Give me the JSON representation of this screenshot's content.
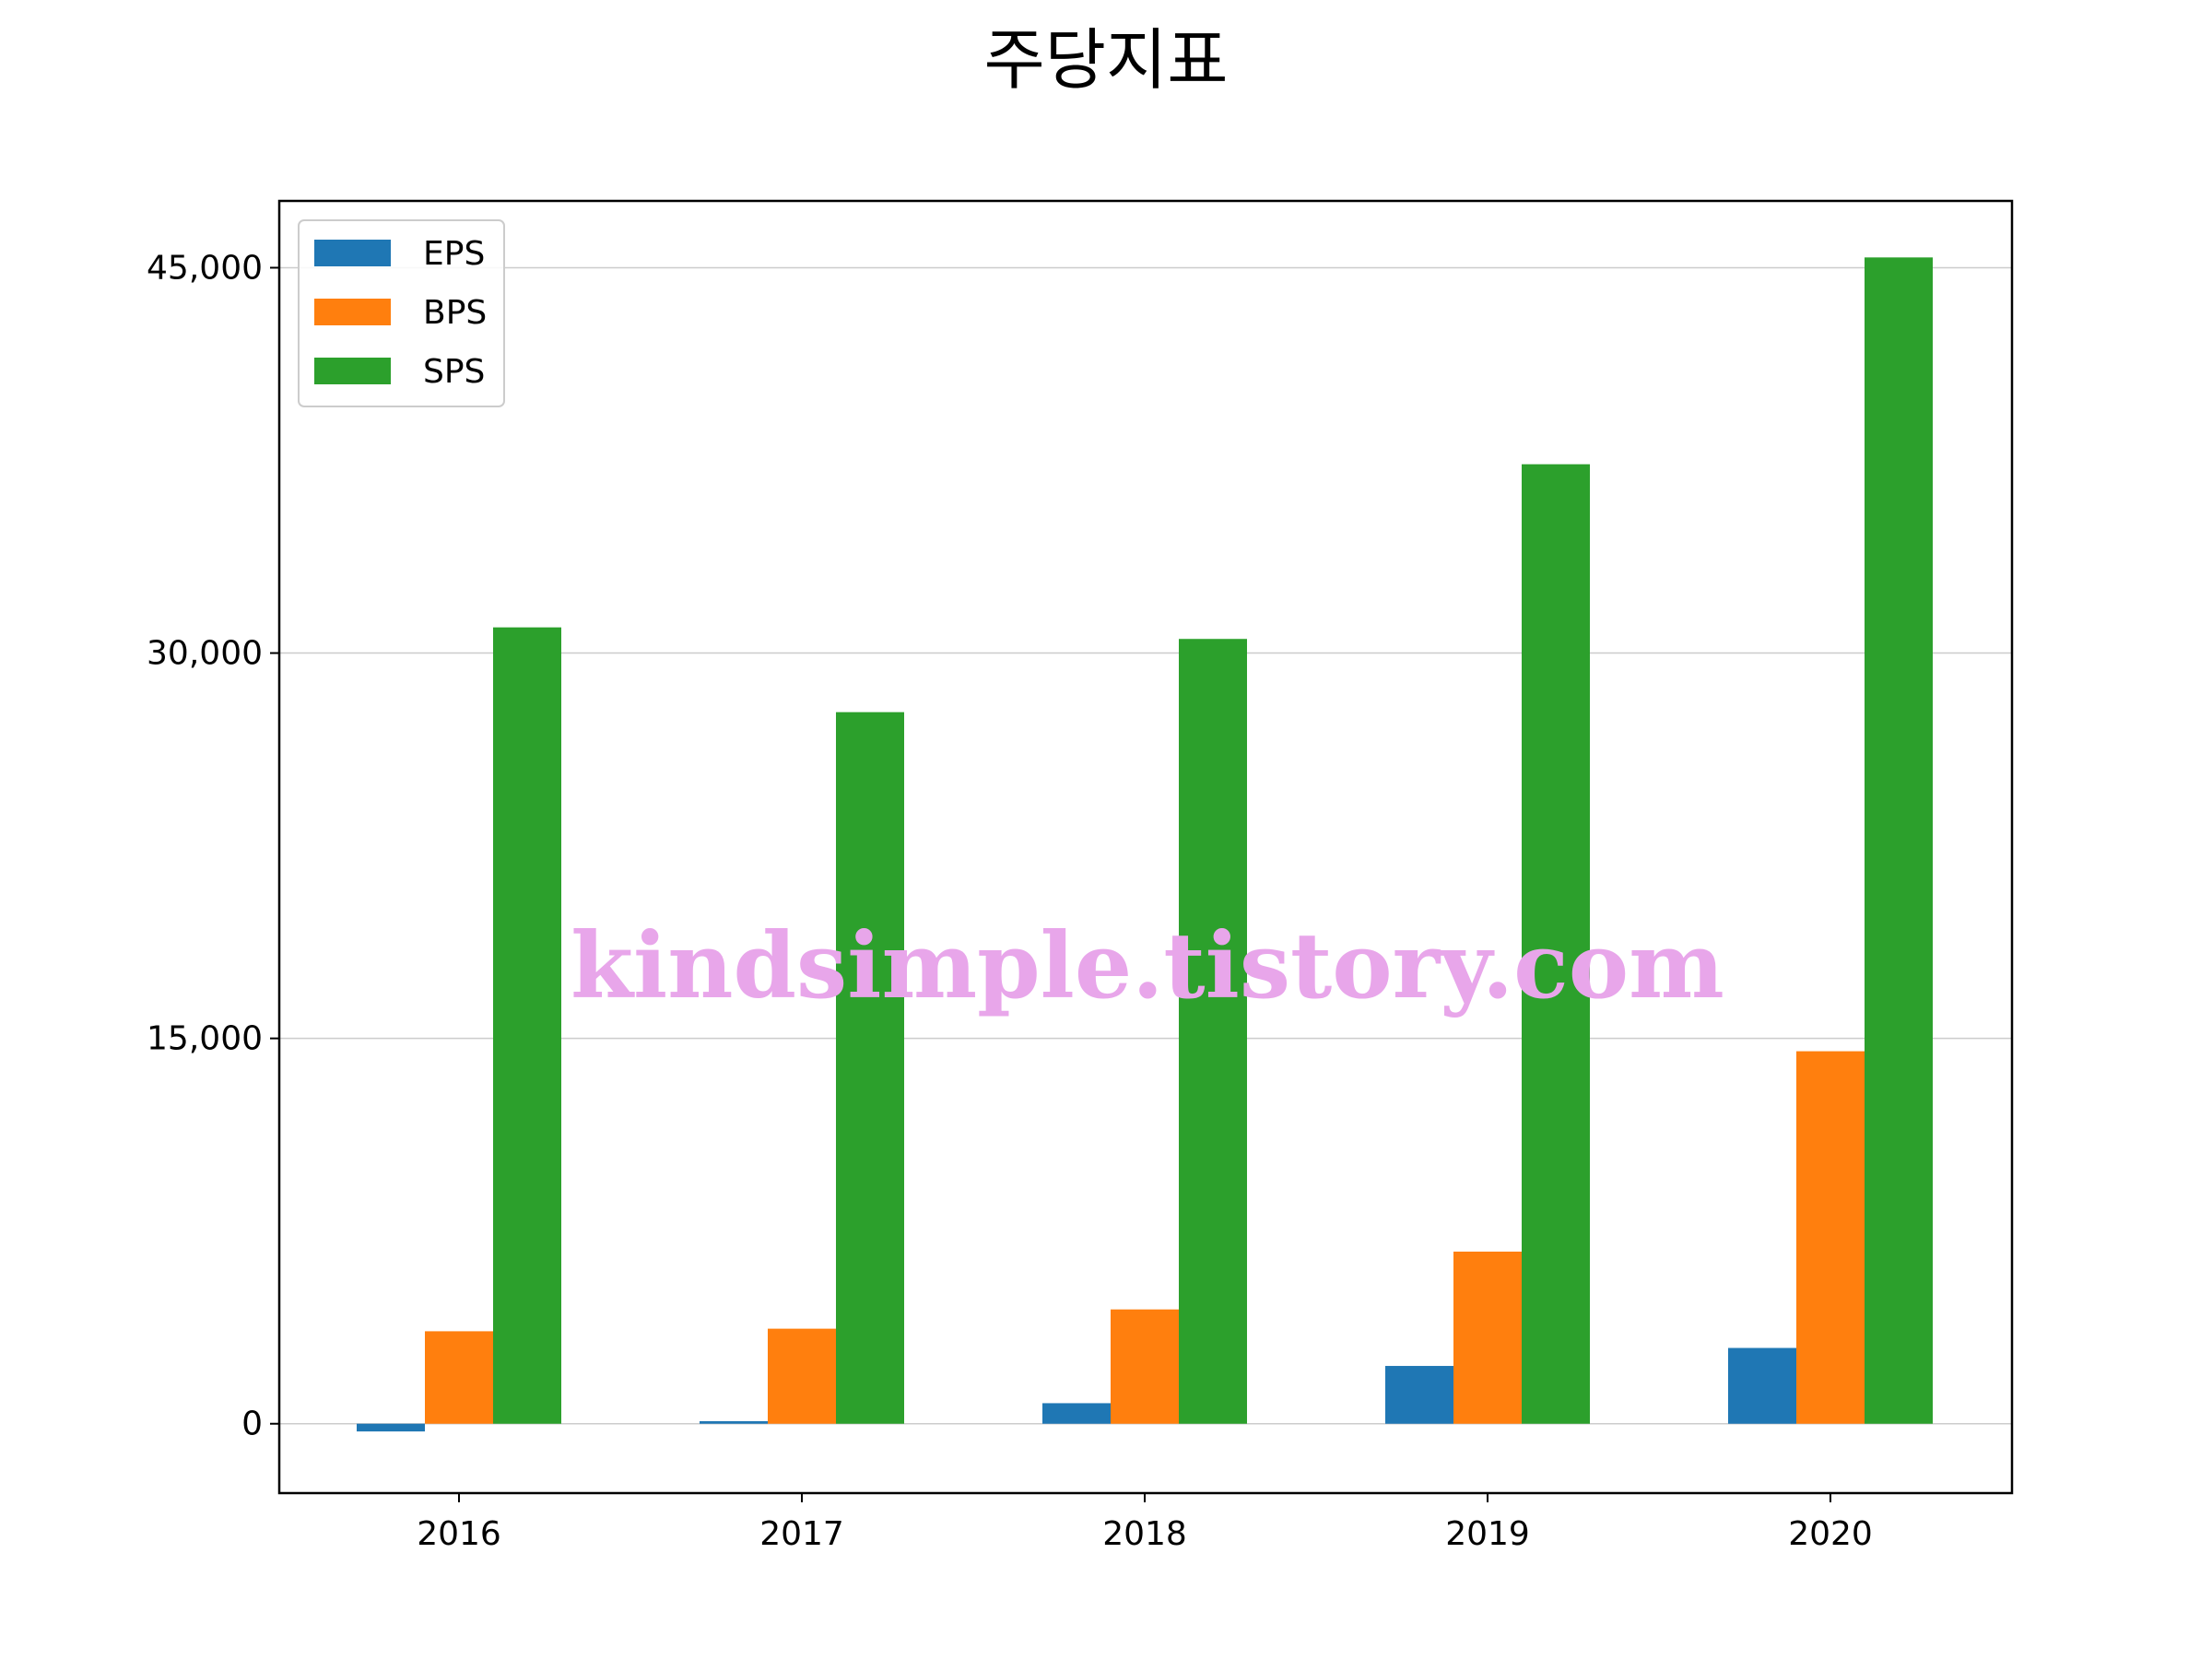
{
  "chart_data": {
    "type": "bar",
    "title": "주당지표",
    "categories": [
      "2016",
      "2017",
      "2018",
      "2019",
      "2020"
    ],
    "series": [
      {
        "name": "EPS",
        "color": "#1f77b4",
        "values": [
          -300,
          100,
          800,
          2250,
          2950
        ]
      },
      {
        "name": "BPS",
        "color": "#ff7f0e",
        "values": [
          3600,
          3700,
          4450,
          6700,
          14500
        ]
      },
      {
        "name": "SPS",
        "color": "#2ca02c",
        "values": [
          31000,
          27700,
          30550,
          37350,
          45400
        ]
      }
    ],
    "yticks": [
      0,
      15000,
      30000,
      45000
    ],
    "ytick_labels": [
      "0",
      "15,000",
      "30,000",
      "45,000"
    ],
    "ylim": [
      -2700,
      47600
    ],
    "grid": "horizontal",
    "legend": "top-left",
    "xlabel": "",
    "ylabel": ""
  },
  "watermark": "kindsimple.tistory.com"
}
